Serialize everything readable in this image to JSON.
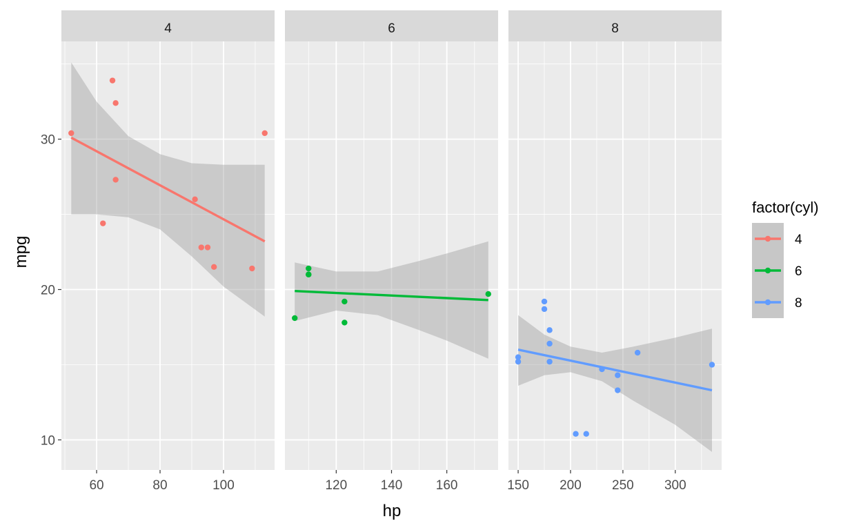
{
  "chart_data": {
    "type": "scatter",
    "facet_by": "cyl",
    "xlabel": "hp",
    "ylabel": "mpg",
    "ylim": [
      8,
      36.5
    ],
    "y_ticks": [
      10,
      20,
      30
    ],
    "grid": true,
    "legend": {
      "title": "factor(cyl)",
      "position": "right",
      "entries": [
        {
          "label": "4",
          "color": "#F8766D"
        },
        {
          "label": "6",
          "color": "#00BA38"
        },
        {
          "label": "8",
          "color": "#619CFF"
        }
      ]
    },
    "panels": [
      {
        "strip_label": "4",
        "color": "#F8766D",
        "xlim": [
          48.9,
          116.1
        ],
        "x_ticks": [
          60,
          80,
          100
        ],
        "points": [
          [
            93,
            22.8
          ],
          [
            62,
            24.4
          ],
          [
            95,
            22.8
          ],
          [
            66,
            32.4
          ],
          [
            52,
            30.4
          ],
          [
            65,
            33.9
          ],
          [
            97,
            21.5
          ],
          [
            66,
            27.3
          ],
          [
            91,
            26.0
          ],
          [
            113,
            30.4
          ],
          [
            109,
            21.4
          ]
        ],
        "fit": {
          "x": [
            52,
            113
          ],
          "y": [
            30.1,
            23.2
          ]
        },
        "band": [
          {
            "x": 52,
            "lo": 25.0,
            "hi": 35.1
          },
          {
            "x": 60,
            "lo": 25.0,
            "hi": 32.5
          },
          {
            "x": 70,
            "lo": 24.8,
            "hi": 30.2
          },
          {
            "x": 80,
            "lo": 24.0,
            "hi": 29.0
          },
          {
            "x": 90,
            "lo": 22.2,
            "hi": 28.4
          },
          {
            "x": 100,
            "lo": 20.2,
            "hi": 28.3
          },
          {
            "x": 113,
            "lo": 18.2,
            "hi": 28.3
          }
        ]
      },
      {
        "strip_label": "6",
        "color": "#00BA38",
        "xlim": [
          101.45,
          178.55
        ],
        "x_ticks": [
          120,
          140,
          160
        ],
        "points": [
          [
            110,
            21.0
          ],
          [
            110,
            21.0
          ],
          [
            110,
            21.4
          ],
          [
            105,
            18.1
          ],
          [
            175,
            19.7
          ],
          [
            123,
            19.2
          ],
          [
            123,
            17.8
          ]
        ],
        "fit": {
          "x": [
            105,
            175
          ],
          "y": [
            19.9,
            19.3
          ]
        },
        "band": [
          {
            "x": 105,
            "lo": 17.9,
            "hi": 21.8
          },
          {
            "x": 120,
            "lo": 18.6,
            "hi": 21.2
          },
          {
            "x": 135,
            "lo": 18.3,
            "hi": 21.2
          },
          {
            "x": 150,
            "lo": 17.3,
            "hi": 21.9
          },
          {
            "x": 160,
            "lo": 16.6,
            "hi": 22.4
          },
          {
            "x": 175,
            "lo": 15.4,
            "hi": 23.2
          }
        ]
      },
      {
        "strip_label": "8",
        "color": "#619CFF",
        "xlim": [
          140.75,
          344.25
        ],
        "x_ticks": [
          150,
          200,
          250,
          300
        ],
        "points": [
          [
            175,
            18.7
          ],
          [
            245,
            14.3
          ],
          [
            180,
            16.4
          ],
          [
            180,
            17.3
          ],
          [
            180,
            15.2
          ],
          [
            205,
            10.4
          ],
          [
            215,
            10.4
          ],
          [
            230,
            14.7
          ],
          [
            150,
            15.5
          ],
          [
            150,
            15.2
          ],
          [
            245,
            13.3
          ],
          [
            175,
            19.2
          ],
          [
            264,
            15.8
          ],
          [
            335,
            15.0
          ]
        ],
        "fit": {
          "x": [
            150,
            335
          ],
          "y": [
            16.0,
            13.3
          ]
        },
        "band": [
          {
            "x": 150,
            "lo": 13.6,
            "hi": 18.3
          },
          {
            "x": 175,
            "lo": 14.3,
            "hi": 17.0
          },
          {
            "x": 200,
            "lo": 14.5,
            "hi": 16.2
          },
          {
            "x": 230,
            "lo": 13.9,
            "hi": 15.8
          },
          {
            "x": 260,
            "lo": 12.6,
            "hi": 16.2
          },
          {
            "x": 300,
            "lo": 11.0,
            "hi": 16.8
          },
          {
            "x": 335,
            "lo": 9.2,
            "hi": 17.4
          }
        ]
      }
    ]
  }
}
